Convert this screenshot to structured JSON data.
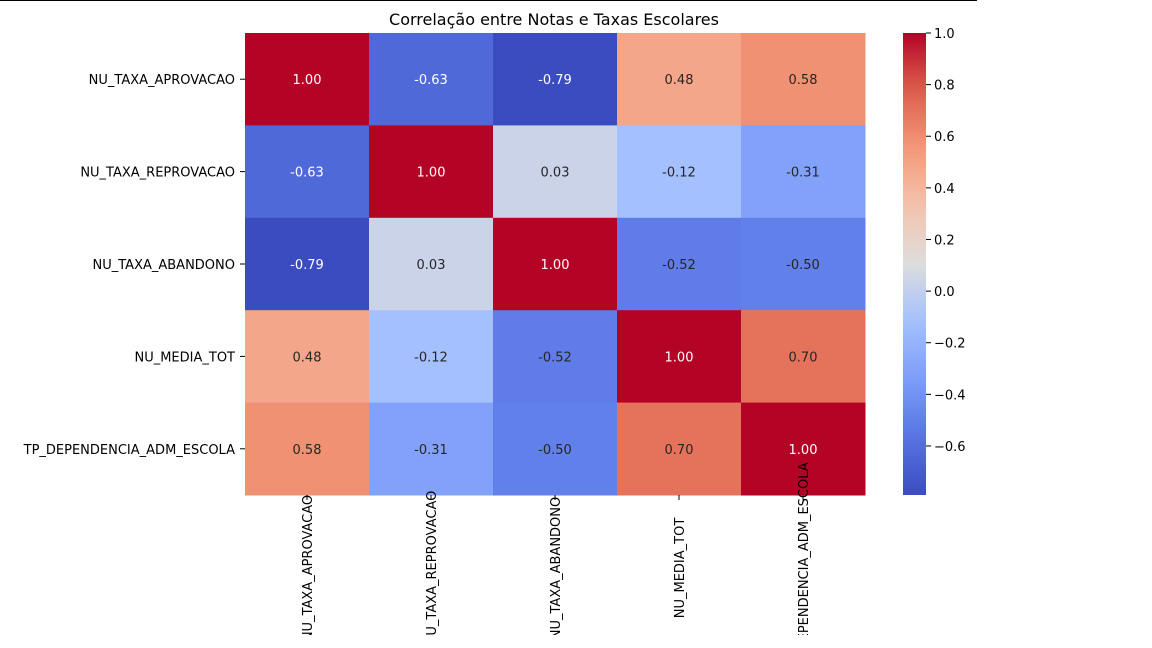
{
  "chart_data": {
    "type": "heatmap",
    "title": "Correlação entre Notas e Taxas Escolares",
    "row_labels": [
      "NU_TAXA_APROVACAO",
      "NU_TAXA_REPROVACAO",
      "NU_TAXA_ABANDONO",
      "NU_MEDIA_TOT",
      "TP_DEPENDENCIA_ADM_ESCOLA"
    ],
    "col_labels": [
      "NU_TAXA_APROVACAO",
      "NU_TAXA_REPROVACAO",
      "NU_TAXA_ABANDONO",
      "NU_MEDIA_TOT",
      "TP_DEPENDENCIA_ADM_ESCOLA"
    ],
    "values": [
      [
        1.0,
        -0.63,
        -0.79,
        0.48,
        0.58
      ],
      [
        -0.63,
        1.0,
        0.03,
        -0.12,
        -0.31
      ],
      [
        -0.79,
        0.03,
        1.0,
        -0.52,
        -0.5
      ],
      [
        0.48,
        -0.12,
        -0.52,
        1.0,
        0.7
      ],
      [
        0.58,
        -0.31,
        -0.5,
        0.7,
        1.0
      ]
    ],
    "annotation_format": "0.00",
    "colormap": "coolwarm",
    "colorbar": {
      "vmin": -0.79,
      "vmax": 1.0,
      "ticks": [
        1.0,
        0.8,
        0.6,
        0.4,
        0.2,
        0.0,
        -0.2,
        -0.4,
        -0.6
      ],
      "tick_labels": [
        "1.0",
        "0.8",
        "0.6",
        "0.4",
        "0.2",
        "0.0",
        "−0.2",
        "−0.4",
        "−0.6"
      ]
    },
    "grid": false
  }
}
